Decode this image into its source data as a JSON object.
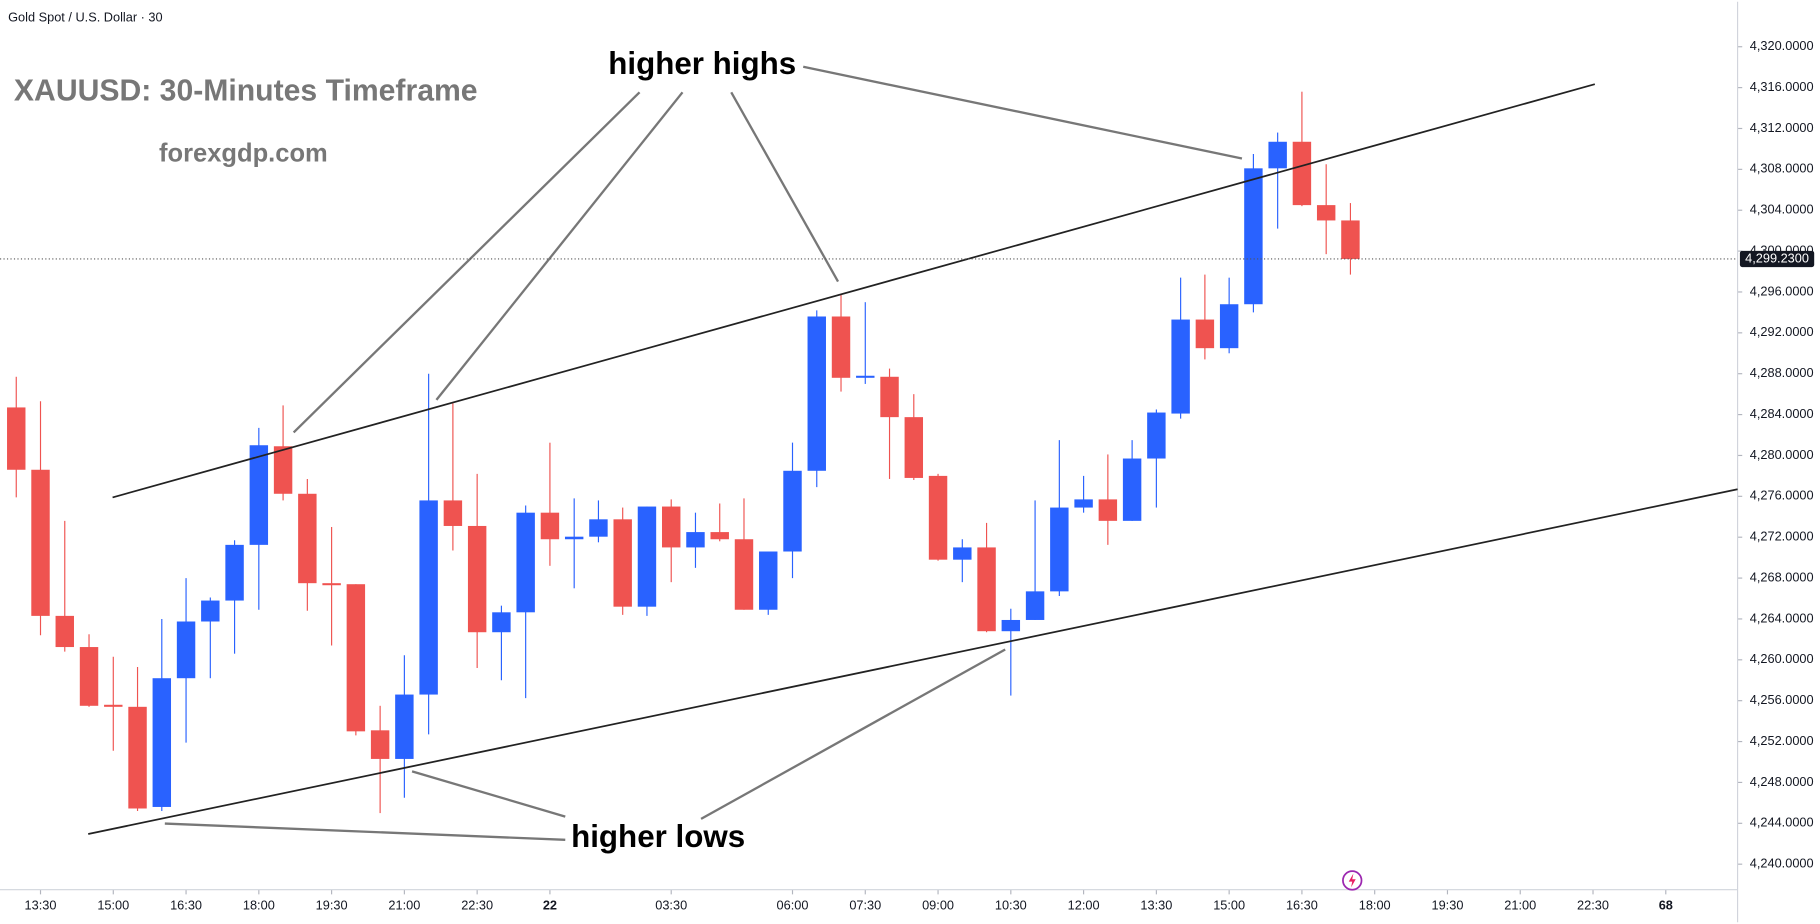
{
  "chart_data": {
    "type": "candlestick",
    "header": "Gold Spot / U.S. Dollar · 30",
    "title": "XAUUSD: 30-Minutes Timeframe",
    "subtitle": "forexgdp.com",
    "annotations": [
      "higher highs",
      "higher lows"
    ],
    "up_color": "#2962ff",
    "down_color": "#ef5350",
    "x": [
      0,
      1,
      2,
      3,
      4,
      5,
      6,
      7,
      8,
      9,
      10,
      11,
      12,
      13,
      14,
      15,
      16,
      17,
      18,
      19,
      20,
      21,
      22,
      23,
      24,
      25,
      26,
      27,
      28,
      29,
      30,
      31,
      32,
      33,
      34,
      35,
      36,
      37,
      38,
      39,
      40,
      41,
      42,
      43,
      44,
      45,
      46,
      47,
      48,
      49,
      50,
      51,
      52,
      53,
      54,
      55
    ],
    "open": [
      4284.7,
      4278.6,
      4264.3,
      4261.25,
      4255.6,
      4255.4,
      4245.6,
      4258.2,
      4263.75,
      4265.8,
      4271.25,
      4280.9,
      4276.25,
      4267.5,
      4267.4,
      4253.1,
      4250.3,
      4256.6,
      4275.6,
      4273.1,
      4262.7,
      4264.65,
      4274.4,
      4271.8,
      4272.05,
      4273.75,
      4265.2,
      4275.0,
      4271.0,
      4272.5,
      4271.8,
      4264.9,
      4270.6,
      4278.5,
      4293.6,
      4287.6,
      4287.7,
      4283.75,
      4278.0,
      4269.8,
      4271.0,
      4262.8,
      4263.9,
      4266.7,
      4274.9,
      4275.7,
      4273.6,
      4279.7,
      4284.1,
      4293.3,
      4290.5,
      4294.8,
      4308.1,
      4310.7,
      4304.5,
      4303.0
    ],
    "high": [
      4287.7,
      4285.3,
      4273.6,
      4262.5,
      4260.3,
      4259.3,
      4264.0,
      4268.0,
      4266.1,
      4271.7,
      4282.7,
      4284.9,
      4277.7,
      4273.0,
      4267.4,
      4255.5,
      4260.45,
      4288.0,
      4285.1,
      4278.2,
      4265.3,
      4275.1,
      4281.25,
      4275.8,
      4275.6,
      4274.9,
      4275.0,
      4275.7,
      4274.4,
      4275.3,
      4275.8,
      4270.6,
      4281.25,
      4294.2,
      4295.7,
      4295.0,
      4288.5,
      4286.0,
      4278.2,
      4271.8,
      4273.4,
      4265.0,
      4275.6,
      4281.5,
      4278.0,
      4280.1,
      4281.5,
      4284.5,
      4297.4,
      4297.7,
      4297.4,
      4309.5,
      4311.6,
      4315.6,
      4308.5,
      4304.7
    ],
    "low": [
      4275.9,
      4262.4,
      4260.8,
      4255.4,
      4251.1,
      4245.2,
      4245.2,
      4251.9,
      4258.2,
      4260.6,
      4264.9,
      4275.6,
      4264.8,
      4261.4,
      4252.6,
      4245.0,
      4246.5,
      4252.7,
      4270.7,
      4259.2,
      4258.0,
      4256.25,
      4269.2,
      4267.0,
      4271.5,
      4264.4,
      4264.3,
      4267.6,
      4269.0,
      4271.6,
      4264.9,
      4264.4,
      4268.0,
      4276.9,
      4286.25,
      4287.0,
      4277.7,
      4277.6,
      4269.7,
      4267.6,
      4262.7,
      4256.5,
      4263.9,
      4266.25,
      4274.4,
      4271.25,
      4273.6,
      4274.9,
      4283.6,
      4289.4,
      4290.0,
      4294.0,
      4302.2,
      4304.4,
      4299.7,
      4297.7
    ],
    "close": [
      4278.6,
      4264.3,
      4261.25,
      4255.5,
      4255.4,
      4245.45,
      4258.2,
      4263.75,
      4265.8,
      4271.25,
      4281.0,
      4276.25,
      4267.5,
      4267.3,
      4253.0,
      4250.3,
      4256.6,
      4275.6,
      4273.1,
      4262.7,
      4264.65,
      4274.4,
      4271.8,
      4272.05,
      4273.75,
      4265.2,
      4275.0,
      4271.0,
      4272.5,
      4271.8,
      4264.9,
      4270.6,
      4278.5,
      4293.6,
      4287.6,
      4287.8,
      4283.75,
      4277.8,
      4269.8,
      4271.0,
      4262.8,
      4263.9,
      4266.7,
      4274.9,
      4275.7,
      4273.6,
      4279.7,
      4284.2,
      4293.3,
      4290.5,
      4294.8,
      4308.1,
      4310.7,
      4304.5,
      4303.0,
      4299.23
    ],
    "last_price": {
      "value": 4299.23,
      "label": "4,299.2300"
    },
    "xlim": [
      -0.67,
      70.96
    ],
    "xticks": [
      {
        "value": 1,
        "label": "13:30"
      },
      {
        "value": 4,
        "label": "15:00"
      },
      {
        "value": 7,
        "label": "16:30"
      },
      {
        "value": 10,
        "label": "18:00"
      },
      {
        "value": 13,
        "label": "19:30"
      },
      {
        "value": 16,
        "label": "21:00"
      },
      {
        "value": 19,
        "label": "22:30"
      },
      22,
      {
        "value": 27,
        "label": "03:30"
      },
      {
        "value": 32,
        "label": "06:00"
      },
      {
        "value": 35,
        "label": "07:30"
      },
      {
        "value": 38,
        "label": "09:00"
      },
      {
        "value": 41,
        "label": "10:30"
      },
      {
        "value": 44,
        "label": "12:00"
      },
      {
        "value": 47,
        "label": "13:30"
      },
      {
        "value": 50,
        "label": "15:00"
      },
      {
        "value": 53,
        "label": "16:30"
      },
      {
        "value": 56,
        "label": "18:00"
      },
      {
        "value": 59,
        "label": "19:30"
      },
      {
        "value": 62,
        "label": "21:00"
      },
      {
        "value": 65,
        "label": "22:30"
      },
      68
    ],
    "ylim": [
      4237.5,
      4324.4
    ],
    "yticks": [
      {
        "value": 4240,
        "label": "4,240.0000"
      },
      {
        "value": 4244,
        "label": "4,244.0000"
      },
      {
        "value": 4248,
        "label": "4,248.0000"
      },
      {
        "value": 4252,
        "label": "4,252.0000"
      },
      {
        "value": 4256,
        "label": "4,256.0000"
      },
      {
        "value": 4260,
        "label": "4,260.0000"
      },
      {
        "value": 4264,
        "label": "4,264.0000"
      },
      {
        "value": 4268,
        "label": "4,268.0000"
      },
      {
        "value": 4272,
        "label": "4,272.0000"
      },
      {
        "value": 4276,
        "label": "4,276.0000"
      },
      {
        "value": 4280,
        "label": "4,280.0000"
      },
      {
        "value": 4284,
        "label": "4,284.0000"
      },
      {
        "value": 4288,
        "label": "4,288.0000"
      },
      {
        "value": 4292,
        "label": "4,292.0000"
      },
      {
        "value": 4296,
        "label": "4,296.0000"
      },
      {
        "value": 4300,
        "label": "4,300.0000"
      },
      {
        "value": 4304,
        "label": "4,304.0000"
      },
      {
        "value": 4308,
        "label": "4,308.0000"
      },
      {
        "value": 4312,
        "label": "4,312.0000"
      },
      {
        "value": 4316,
        "label": "4,316.0000"
      },
      {
        "value": 4320,
        "label": "4,320.0000"
      }
    ]
  }
}
